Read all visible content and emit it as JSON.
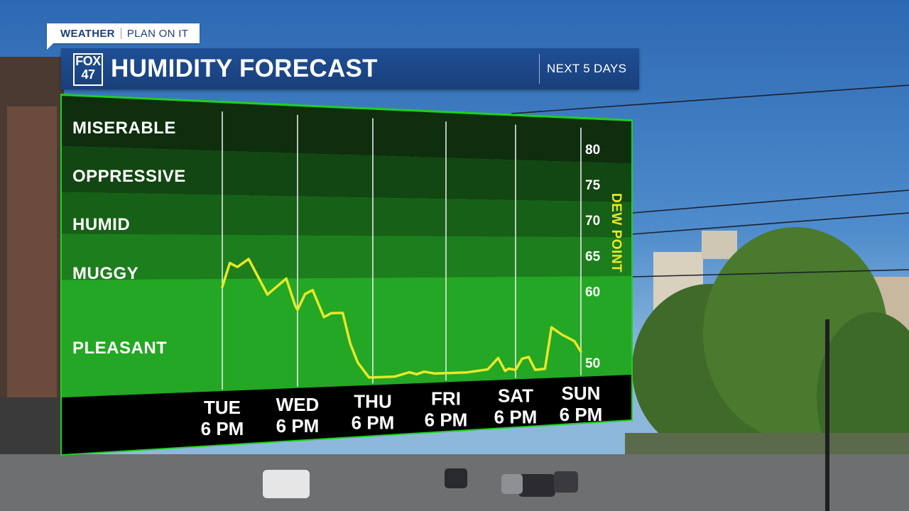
{
  "header": {
    "tag_left": "WEATHER",
    "tag_right": "PLAN ON IT",
    "logo_line1": "FOX",
    "logo_line2": "47",
    "title": "HUMIDITY FORECAST",
    "right_label": "NEXT 5 DAYS"
  },
  "chart_data": {
    "type": "line",
    "title": "HUMIDITY FORECAST",
    "ylabel": "DEW POINT",
    "ylim": [
      48,
      84
    ],
    "yticks": [
      80,
      75,
      70,
      65,
      60,
      50
    ],
    "bands": [
      {
        "label": "MISERABLE",
        "from": 78,
        "to": 84,
        "color": "#0e2e0e"
      },
      {
        "label": "OPPRESSIVE",
        "from": 72.5,
        "to": 78,
        "color": "#124612"
      },
      {
        "label": "HUMID",
        "from": 67.5,
        "to": 72.5,
        "color": "#176017"
      },
      {
        "label": "MUGGY",
        "from": 62,
        "to": 67.5,
        "color": "#1d7e1d"
      },
      {
        "label": "PLEASANT",
        "from": 48,
        "to": 62,
        "color": "#24a724"
      }
    ],
    "categories": [
      {
        "day": "TUE",
        "time": "6 PM"
      },
      {
        "day": "WED",
        "time": "6 PM"
      },
      {
        "day": "THU",
        "time": "6 PM"
      },
      {
        "day": "FRI",
        "time": "6 PM"
      },
      {
        "day": "SAT",
        "time": "6 PM"
      },
      {
        "day": "SUN",
        "time": "6 PM"
      }
    ],
    "series": [
      {
        "color": "#e8e82a",
        "x": [
          0,
          0.1,
          0.2,
          0.35,
          0.6,
          0.85,
          0.97,
          1.0,
          1.1,
          1.2,
          1.35,
          1.45,
          1.6,
          1.7,
          1.8,
          1.95,
          2.0,
          2.1,
          2.3,
          2.5,
          2.6,
          2.7,
          2.85,
          3.0,
          3.3,
          3.6,
          3.75,
          3.85,
          3.9,
          4.0,
          4.1,
          4.2,
          4.3,
          4.45,
          4.55,
          4.7,
          4.9,
          5.0
        ],
        "y": [
          61,
          64,
          63.5,
          64.5,
          60,
          62,
          58.5,
          58,
          60,
          60.5,
          57,
          57.5,
          57.5,
          53.5,
          51,
          49,
          49,
          49,
          49,
          49.5,
          49.2,
          49.5,
          49.2,
          49.2,
          49.2,
          49.5,
          51,
          49.2,
          49.5,
          49.3,
          50.8,
          51,
          49.2,
          49.3,
          55,
          54,
          53,
          51.5
        ]
      }
    ]
  }
}
